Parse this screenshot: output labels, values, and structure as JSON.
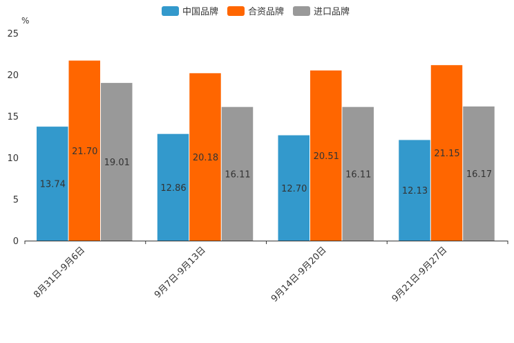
{
  "chart_data": {
    "type": "bar",
    "unit": "%",
    "categories": [
      "8月31日-9月6日",
      "9月7日-9月13日",
      "9月14日-9月20日",
      "9月21日-9月27日"
    ],
    "series": [
      {
        "name": "中国品牌",
        "color": "#3399cc",
        "values": [
          13.74,
          12.86,
          12.7,
          12.13
        ]
      },
      {
        "name": "合资品牌",
        "color": "#ff6600",
        "values": [
          21.7,
          20.18,
          20.51,
          21.15
        ]
      },
      {
        "name": "进口品牌",
        "color": "#999999",
        "values": [
          19.01,
          16.11,
          16.11,
          16.17
        ]
      }
    ],
    "ylim": [
      0,
      25
    ],
    "yticks": [
      "0",
      "5",
      "10",
      "15",
      "20",
      "25"
    ],
    "legend_position": "top-center",
    "grid": false
  }
}
